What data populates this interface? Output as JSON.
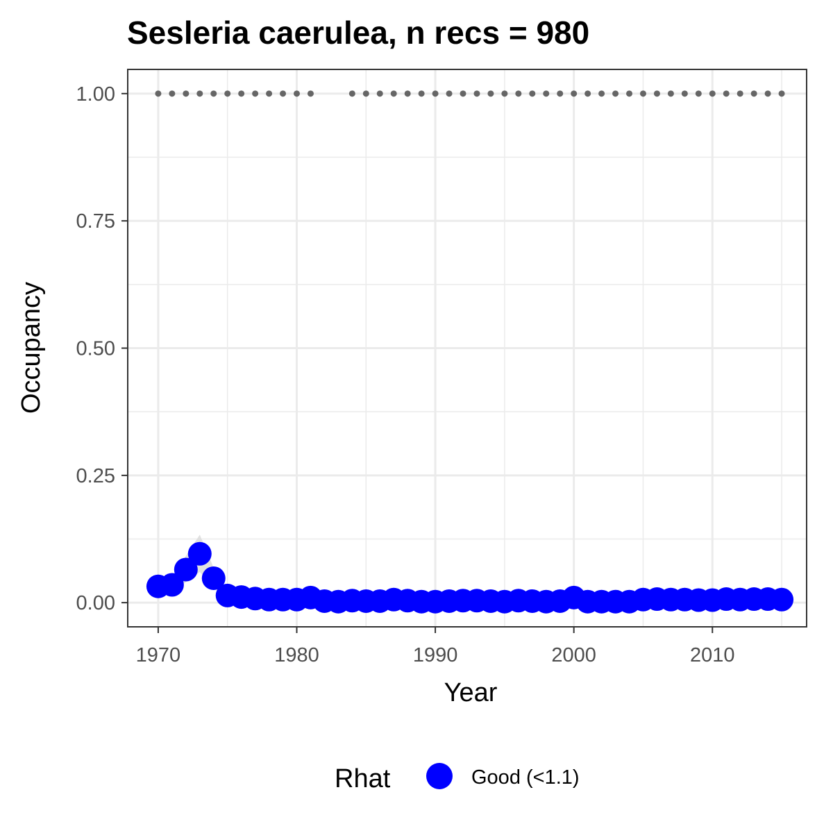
{
  "chart_data": {
    "type": "scatter",
    "title": "Sesleria caerulea, n recs = 980",
    "xlabel": "Year",
    "ylabel": "Occupancy",
    "xlim": [
      1967.8,
      2016.8
    ],
    "ylim": [
      -0.0475,
      1.0475
    ],
    "x_ticks": [
      1970,
      1980,
      1990,
      2000,
      2010
    ],
    "x_tick_labels": [
      "1970",
      "1980",
      "1990",
      "2000",
      "2010"
    ],
    "y_ticks": [
      0,
      0.25,
      0.5,
      0.75,
      1
    ],
    "y_tick_labels": [
      "0.00",
      "0.25",
      "0.50",
      "0.75",
      "1.00"
    ],
    "grid": true,
    "legend": {
      "title": "Rhat",
      "position": "bottom",
      "entries": [
        {
          "label": "Good (<1.1)",
          "color": "#0000ff"
        }
      ]
    },
    "colors": {
      "points": "#0000ff",
      "ribbon": "#d9d9d9",
      "reference": "#666666",
      "grid": "#ebebeb",
      "panel_border": "#333333"
    },
    "series": [
      {
        "name": "Good (<1.1)",
        "x": [
          1970,
          1971,
          1972,
          1973,
          1974,
          1975,
          1976,
          1977,
          1978,
          1979,
          1980,
          1981,
          1982,
          1983,
          1984,
          1985,
          1986,
          1987,
          1988,
          1989,
          1990,
          1991,
          1992,
          1993,
          1994,
          1995,
          1996,
          1997,
          1998,
          1999,
          2000,
          2001,
          2002,
          2003,
          2004,
          2005,
          2006,
          2007,
          2008,
          2009,
          2010,
          2011,
          2012,
          2013,
          2014,
          2015
        ],
        "values": [
          0.032,
          0.035,
          0.065,
          0.096,
          0.048,
          0.014,
          0.011,
          0.008,
          0.006,
          0.006,
          0.006,
          0.01,
          0.003,
          0.002,
          0.004,
          0.003,
          0.003,
          0.006,
          0.004,
          0.002,
          0.002,
          0.003,
          0.004,
          0.004,
          0.003,
          0.002,
          0.004,
          0.003,
          0.002,
          0.003,
          0.01,
          0.002,
          0.002,
          0.002,
          0.002,
          0.006,
          0.007,
          0.006,
          0.006,
          0.005,
          0.005,
          0.007,
          0.006,
          0.007,
          0.007,
          0.006
        ]
      }
    ],
    "reference_points": {
      "x": [
        1970,
        1971,
        1972,
        1973,
        1974,
        1975,
        1976,
        1977,
        1978,
        1979,
        1980,
        1981,
        1984,
        1985,
        1986,
        1987,
        1988,
        1989,
        1990,
        1991,
        1992,
        1993,
        1994,
        1995,
        1996,
        1997,
        1998,
        1999,
        2000,
        2001,
        2002,
        2003,
        2004,
        2005,
        2006,
        2007,
        2008,
        2009,
        2010,
        2011,
        2012,
        2013,
        2014,
        2015
      ],
      "y": 1.0
    }
  }
}
